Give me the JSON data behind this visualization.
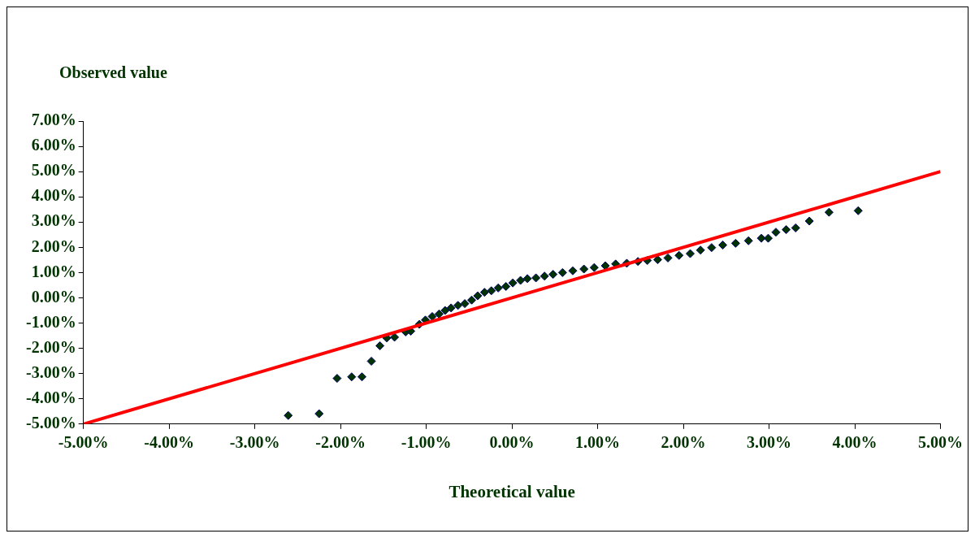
{
  "chart_data": {
    "type": "scatter",
    "ylabel": "Observed value",
    "xlabel": "Theoretical value",
    "xlim": [
      -5,
      5
    ],
    "ylim": [
      -5,
      7
    ],
    "xticks": [
      {
        "value": -5,
        "label": "-5.00%"
      },
      {
        "value": -4,
        "label": "-4.00%"
      },
      {
        "value": -3,
        "label": "-3.00%"
      },
      {
        "value": -2,
        "label": "-2.00%"
      },
      {
        "value": -1,
        "label": "-1.00%"
      },
      {
        "value": 0,
        "label": "0.00%"
      },
      {
        "value": 1,
        "label": "1.00%"
      },
      {
        "value": 2,
        "label": "2.00%"
      },
      {
        "value": 3,
        "label": "3.00%"
      },
      {
        "value": 4,
        "label": "4.00%"
      },
      {
        "value": 5,
        "label": "5.00%"
      }
    ],
    "yticks": [
      {
        "value": -5,
        "label": "-5.00%"
      },
      {
        "value": -4,
        "label": "-4.00%"
      },
      {
        "value": -3,
        "label": "-3.00%"
      },
      {
        "value": -2,
        "label": "-2.00%"
      },
      {
        "value": -1,
        "label": "-1.00%"
      },
      {
        "value": 0,
        "label": "0.00%"
      },
      {
        "value": 1,
        "label": "1.00%"
      },
      {
        "value": 2,
        "label": "2.00%"
      },
      {
        "value": 3,
        "label": "3.00%"
      },
      {
        "value": 4,
        "label": "4.00%"
      },
      {
        "value": 5,
        "label": "5.00%"
      },
      {
        "value": 6,
        "label": "6.00%"
      },
      {
        "value": 7,
        "label": "7.00%"
      }
    ],
    "grid": false,
    "legend": false,
    "series": [
      {
        "type": "scatter",
        "color": "#003300",
        "marker": "diamond",
        "x": [
          -2.61,
          -2.25,
          -2.04,
          -1.87,
          -1.75,
          -1.64,
          -1.54,
          -1.46,
          -1.37,
          -1.24,
          -1.18,
          -1.08,
          -1.01,
          -0.93,
          -0.85,
          -0.78,
          -0.71,
          -0.63,
          -0.55,
          -0.47,
          -0.4,
          -0.32,
          -0.24,
          -0.16,
          -0.07,
          0.01,
          0.1,
          0.18,
          0.28,
          0.38,
          0.48,
          0.59,
          0.71,
          0.84,
          0.96,
          1.09,
          1.21,
          1.34,
          1.47,
          1.58,
          1.7,
          1.82,
          1.95,
          2.08,
          2.2,
          2.33,
          2.46,
          2.61,
          2.76,
          2.91,
          2.99,
          3.08,
          3.2,
          3.31,
          3.47,
          3.7,
          4.04
        ],
        "values": [
          -4.66,
          -4.59,
          -3.19,
          -3.13,
          -3.13,
          -2.51,
          -1.9,
          -1.59,
          -1.56,
          -1.35,
          -1.32,
          -1.05,
          -0.88,
          -0.74,
          -0.64,
          -0.5,
          -0.4,
          -0.3,
          -0.23,
          -0.09,
          0.08,
          0.22,
          0.28,
          0.39,
          0.45,
          0.59,
          0.69,
          0.76,
          0.79,
          0.86,
          0.93,
          1.0,
          1.07,
          1.14,
          1.2,
          1.27,
          1.34,
          1.37,
          1.44,
          1.48,
          1.51,
          1.58,
          1.68,
          1.75,
          1.89,
          1.99,
          2.09,
          2.16,
          2.26,
          2.36,
          2.36,
          2.6,
          2.7,
          2.77,
          3.04,
          3.39,
          3.45
        ]
      },
      {
        "type": "line",
        "color": "#ff0000",
        "marker": "none",
        "line_style": "solid",
        "x": [
          -5,
          5
        ],
        "values": [
          -5,
          5
        ]
      }
    ]
  }
}
